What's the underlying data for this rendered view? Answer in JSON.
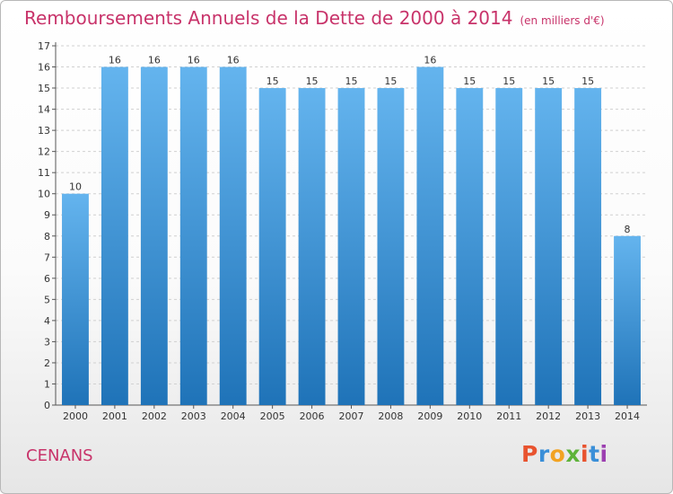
{
  "header": {
    "title": "Remboursements Annuels de la Dette de 2000 à 2014",
    "subtitle": "(en milliers d'€)"
  },
  "footer": {
    "commune": "CENANS",
    "logo": "Proxiti",
    "logo_colors": [
      "#e8532f",
      "#3a8fd8",
      "#f2a322",
      "#5fb33a",
      "#e8532f",
      "#3a8fd8",
      "#9c3fb0"
    ]
  },
  "colors": {
    "title": "#c8336a",
    "bar_top": "#64b4ee",
    "bar_bottom": "#1f73b8",
    "grid": "#d0d0d0"
  },
  "chart_data": {
    "type": "bar",
    "title": "Remboursements Annuels de la Dette de 2000 à 2014",
    "subtitle": "(en milliers d'€)",
    "categories": [
      "2000",
      "2001",
      "2002",
      "2003",
      "2004",
      "2005",
      "2006",
      "2007",
      "2008",
      "2009",
      "2010",
      "2011",
      "2012",
      "2013",
      "2014"
    ],
    "values": [
      10,
      16,
      16,
      16,
      16,
      15,
      15,
      15,
      15,
      16,
      15,
      15,
      15,
      15,
      8
    ],
    "data_labels": [
      "10",
      "16",
      "16",
      "16",
      "16",
      "15",
      "15",
      "15",
      "15",
      "16",
      "15",
      "15",
      "15",
      "15",
      "8"
    ],
    "yticks": [
      "0",
      "1",
      "2",
      "3",
      "4",
      "5",
      "6",
      "7",
      "8",
      "9",
      "10",
      "11",
      "12",
      "13",
      "14",
      "15",
      "16",
      "17"
    ],
    "ylim": [
      0,
      17
    ],
    "xlabel": "",
    "ylabel": "",
    "grid": true,
    "legend": "none"
  }
}
